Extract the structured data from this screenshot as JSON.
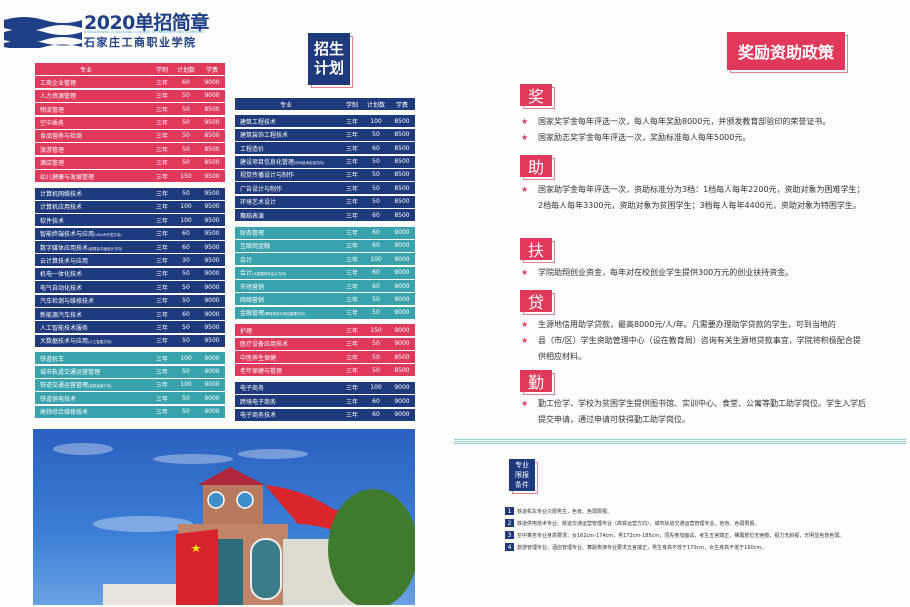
{
  "logo": {
    "title": "2020单招简章",
    "english": "SHIJIAZHUANG VOCATIONAL COLLEGE OF INDUSTRY AND COMMERCE",
    "school": "石家庄工商职业学院"
  },
  "plan_heading": "招生计划",
  "policy_heading": "奖励资助政策",
  "table_headers": {
    "major": "专业",
    "years": "学制",
    "plan": "计划数",
    "fee": "学费"
  },
  "left_groups": [
    {
      "color": "#e0395b",
      "rows": [
        [
          "工商企业管理",
          "",
          "三年",
          "60",
          "9000"
        ],
        [
          "人力资源管理",
          "",
          "三年",
          "50",
          "9000"
        ],
        [
          "物流管理",
          "",
          "三年",
          "50",
          "8500"
        ],
        [
          "空中乘务",
          "",
          "三年",
          "50",
          "9500"
        ],
        [
          "食品营养与检测",
          "",
          "三年",
          "50",
          "8500"
        ],
        [
          "旅游管理",
          "",
          "三年",
          "50",
          "8500"
        ],
        [
          "酒店管理",
          "",
          "三年",
          "50",
          "8500"
        ],
        [
          "幼儿健康与发展管理",
          "",
          "三年",
          "150",
          "9500"
        ]
      ]
    },
    {
      "color": "#1f3a7c",
      "rows": [
        [
          "计算机网络技术",
          "",
          "三年",
          "50",
          "9500"
        ],
        [
          "计算机应用技术",
          "",
          "三年",
          "100",
          "9500"
        ],
        [
          "软件技术",
          "",
          "三年",
          "100",
          "9500"
        ],
        [
          "智能终端技术与应用",
          "(VR/AR开发方向)",
          "三年",
          "60",
          "9500"
        ],
        [
          "数字媒体应用技术",
          "(影视及平面设计方向)",
          "三年",
          "60",
          "9500"
        ],
        [
          "云计算技术与应用",
          "",
          "三年",
          "30",
          "9500"
        ],
        [
          "机电一体化技术",
          "",
          "三年",
          "50",
          "9000"
        ],
        [
          "电气自动化技术",
          "",
          "三年",
          "50",
          "9000"
        ],
        [
          "汽车检测与维修技术",
          "",
          "三年",
          "50",
          "9000"
        ],
        [
          "新能源汽车技术",
          "",
          "三年",
          "60",
          "9000"
        ],
        [
          "人工智能技术服务",
          "",
          "三年",
          "50",
          "9500"
        ],
        [
          "大数据技术与应用",
          "(人工智能方向)",
          "三年",
          "50",
          "9500"
        ]
      ]
    },
    {
      "color": "#39a3ad",
      "rows": [
        [
          "铁道机车",
          "",
          "三年",
          "100",
          "9000"
        ],
        [
          "城市轨道交通运营管理",
          "",
          "三年",
          "50",
          "9000"
        ],
        [
          "铁道交通运营管理",
          "(高铁运营方向)",
          "三年",
          "100",
          "9000"
        ],
        [
          "铁道供电技术",
          "",
          "三年",
          "50",
          "9000"
        ],
        [
          "高铁综合维修技术",
          "",
          "三年",
          "50",
          "9000"
        ]
      ]
    }
  ],
  "middle_groups": [
    {
      "color": "#1f3a7c",
      "rows": [
        [
          "建筑工程技术",
          "",
          "三年",
          "100",
          "8500"
        ],
        [
          "建筑装饰工程技术",
          "",
          "三年",
          "50",
          "8500"
        ],
        [
          "工程造价",
          "",
          "三年",
          "60",
          "8500"
        ],
        [
          "建设项目信息化管理",
          "(BIM技术应用方向)",
          "三年",
          "50",
          "8500"
        ],
        [
          "视觉传播设计与制作",
          "",
          "三年",
          "50",
          "8500"
        ],
        [
          "广告设计与制作",
          "",
          "三年",
          "50",
          "8500"
        ],
        [
          "环境艺术设计",
          "",
          "三年",
          "50",
          "8500"
        ],
        [
          "舞蹈表演",
          "",
          "三年",
          "60",
          "8500"
        ]
      ]
    },
    {
      "color": "#39a3ad",
      "rows": [
        [
          "财务管理",
          "",
          "三年",
          "60",
          "9000"
        ],
        [
          "互联网金融",
          "",
          "三年",
          "60",
          "9000"
        ],
        [
          "会计",
          "",
          "三年",
          "100",
          "9000"
        ],
        [
          "会计",
          "(大数据财务会计方向)",
          "三年",
          "60",
          "9000"
        ],
        [
          "市场营销",
          "",
          "三年",
          "60",
          "9000"
        ],
        [
          "网络营销",
          "",
          "三年",
          "50",
          "9000"
        ],
        [
          "金融管理",
          "(理财规划与风险管理方向)",
          "三年",
          "50",
          "9000"
        ]
      ]
    },
    {
      "color": "#e0395b",
      "rows": [
        [
          "护理",
          "",
          "三年",
          "150",
          "9000"
        ],
        [
          "医疗设备应用技术",
          "",
          "三年",
          "50",
          "9000"
        ],
        [
          "中医养生保健",
          "",
          "三年",
          "50",
          "8500"
        ],
        [
          "老年保健与管理",
          "",
          "三年",
          "50",
          "8500"
        ]
      ]
    },
    {
      "color": "#1f3a7c",
      "rows": [
        [
          "电子商务",
          "",
          "三年",
          "100",
          "9000"
        ],
        [
          "跨境电子商务",
          "",
          "三年",
          "60",
          "9000"
        ],
        [
          "电子商务技术",
          "",
          "三年",
          "60",
          "9000"
        ]
      ]
    }
  ],
  "policies": [
    {
      "tag": "奖",
      "items": [
        "国家奖学金每年评选一次，每人每年奖励8000元，并颁发教育部验印的荣誉证书。",
        "国家励志奖学金每年评选一次，奖励标准每人每年5000元。"
      ]
    },
    {
      "tag": "助",
      "items": [
        "国家助学金每年评选一次，资助标准分为3档：1档每人每年2200元，资助对象为困难学生；2档每人每年3300元，资助对象为贫困学生；3档每人每年4400元，资助对象为特困学生。"
      ]
    },
    {
      "tag": "扶",
      "items": [
        "学院助翔创业资金，每年对在校创业学生提供300万元的创业扶持资金。"
      ]
    },
    {
      "tag": "贷",
      "items": [
        "生源地信用助学贷款，最高8000元/人/年。凡需要办理助学贷款的学生，可到当地的",
        "县（市/区）学生资助管理中心（设在教育局）咨询有关生源地贷款事宜，学院将积极配合提供相应材料。"
      ]
    },
    {
      "tag": "勤",
      "items": [
        "勤工俭学，学校为贫困学生提供图书馆、实训中心、食堂、公寓等勤工助学岗位。学生入学后提交申请，通过申请可获得勤工助学岗位。"
      ]
    }
  ],
  "restrictions": {
    "heading": "专业限报条件",
    "items": [
      {
        "num": "1",
        "text": "铁道机车专业只限男生，色盲、色弱限报。"
      },
      {
        "num": "2",
        "text": "铁道供电技术专业、铁道交通运营管理专业（高铁运营方向）、城市轨道交通运营管理专业，色盲、色弱限报。"
      },
      {
        "num": "3",
        "text": "空中乘务专业身高要求：女162cm-174cm，男172cm-185cm，须先参加面试，考生五官端正，裸露部位无疤痕，视力无斜视，无明显色盲色弱。"
      },
      {
        "num": "4",
        "text": "旅游管理专业、酒店管理专业、舞蹈表演专业要求五官端正，男生身高不低于170cm，女生身高不低于160cm。"
      }
    ]
  },
  "colors": {
    "pink": "#e0395b",
    "blue": "#1f3a7c",
    "teal": "#39a3ad"
  }
}
